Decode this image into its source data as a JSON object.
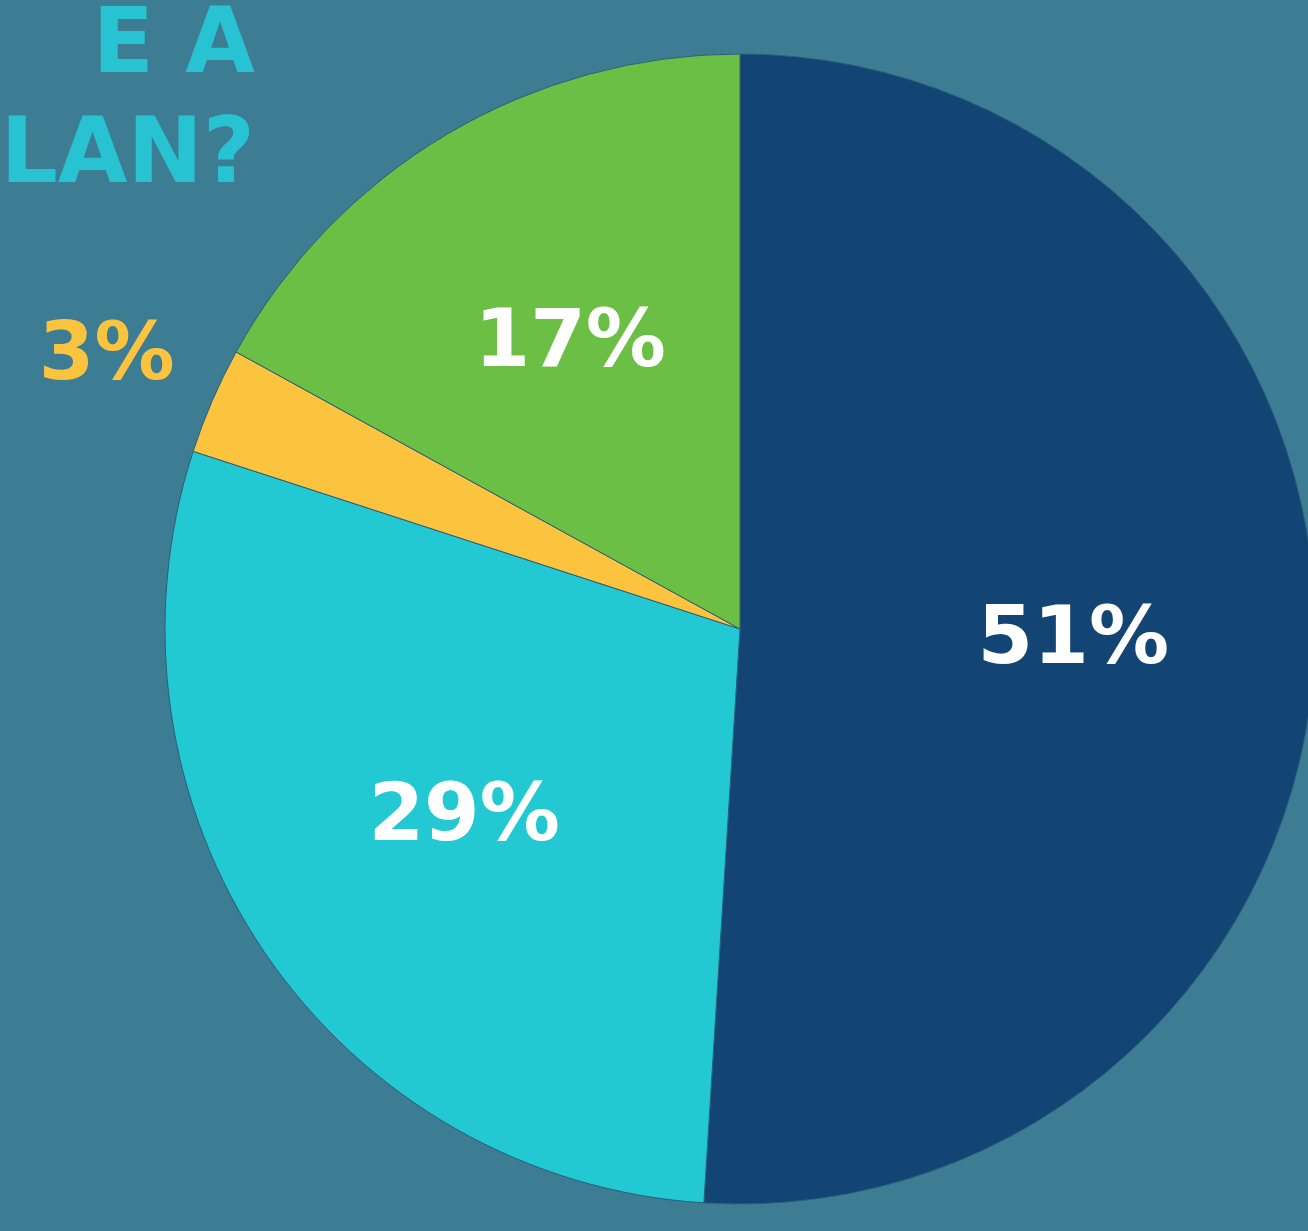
{
  "chart_data": {
    "type": "pie",
    "title": "E A\nLAN?",
    "categories": [
      null,
      null,
      null,
      null
    ],
    "values": [
      51,
      29,
      3,
      17
    ],
    "colors": [
      "#124574",
      "#22c9d3",
      "#fcc43e",
      "#6bbf44"
    ],
    "value_labels": [
      "51%",
      "29%",
      "3%",
      "17%"
    ],
    "legend": false
  }
}
